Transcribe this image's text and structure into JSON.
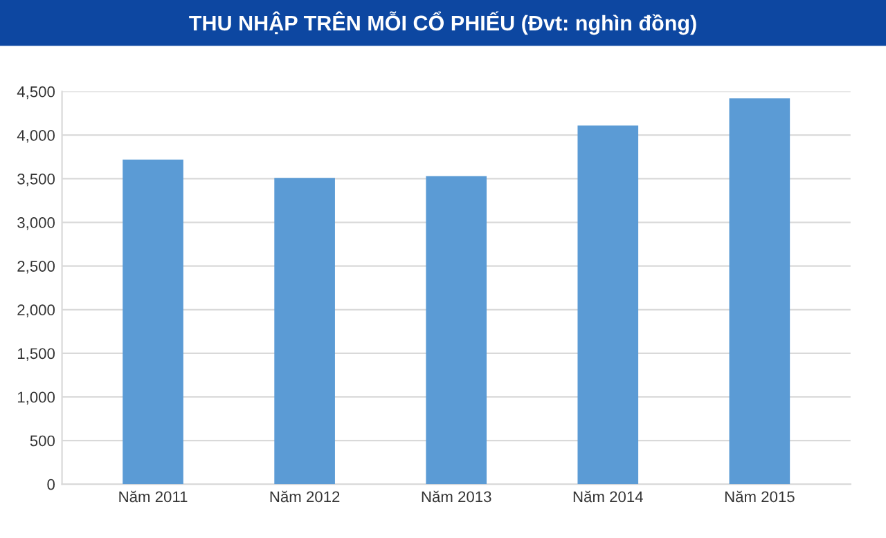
{
  "chart_data": {
    "type": "bar",
    "title": "THU NHẬP TRÊN MỖI CỔ PHIẾU (Đvt: nghìn đồng)",
    "categories": [
      "Năm 2011",
      "Năm 2012",
      "Năm 2013",
      "Năm 2014",
      "Năm 2015"
    ],
    "values": [
      3720,
      3510,
      3530,
      4110,
      4420
    ],
    "color": "#5b9bd5",
    "ylim": [
      0,
      4500
    ],
    "yticks": [
      0,
      500,
      {
        "value": 1000,
        "label": "1,000"
      },
      {
        "value": 1500,
        "label": "1,500"
      },
      {
        "value": 2000,
        "label": "2,000"
      },
      {
        "value": 2500,
        "label": "2,500"
      },
      {
        "value": 3000,
        "label": "3,000"
      },
      {
        "value": 3500,
        "label": "3,500"
      },
      {
        "value": 4000,
        "label": "4,000"
      },
      {
        "value": 4500,
        "label": "4,500"
      }
    ],
    "grid": "y"
  }
}
